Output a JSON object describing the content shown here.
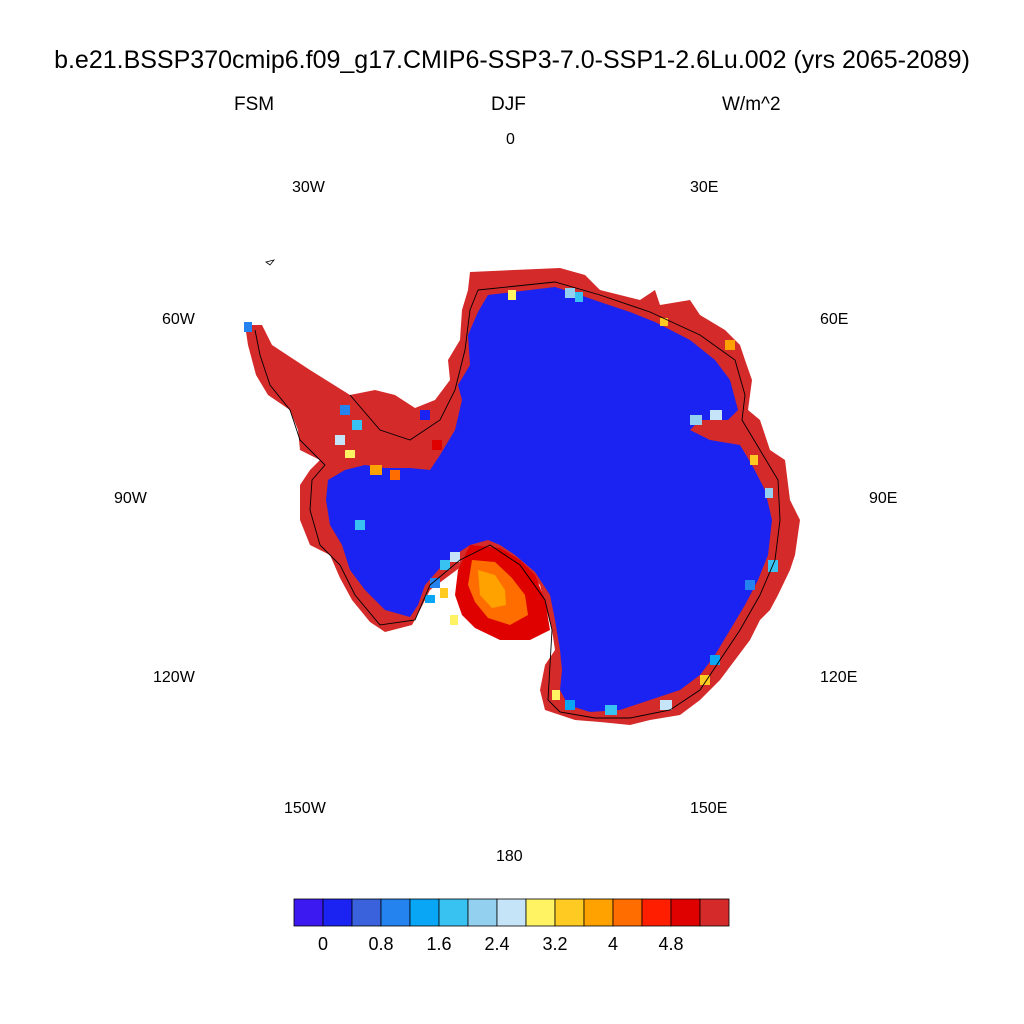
{
  "title": "b.e21.BSSP370cmip6.f09_g17.CMIP6-SSP3-7.0-SSP1-2.6Lu.002 (yrs 2065-2089)",
  "subtitle_left": "FSM",
  "subtitle_center": "DJF",
  "subtitle_right": "W/m^2",
  "longitude_labels": {
    "lon_0": "0",
    "lon_30e": "30E",
    "lon_60e": "60E",
    "lon_90e": "90E",
    "lon_120e": "120E",
    "lon_150e": "150E",
    "lon_180": "180",
    "lon_150w": "150W",
    "lon_120w": "120W",
    "lon_90w": "90W",
    "lon_60w": "60W",
    "lon_30w": "30W"
  },
  "colorbar": {
    "colors": [
      "#3b19f0",
      "#1a23f2",
      "#3a62dc",
      "#2583f0",
      "#0aa6f6",
      "#38c2f2",
      "#93cfee",
      "#c6e4f7",
      "#fff263",
      "#ffca21",
      "#ffa200",
      "#ff6d00",
      "#ff1e00",
      "#df0000",
      "#d42a2a"
    ],
    "labels": [
      "0",
      "0.8",
      "1.6",
      "2.4",
      "3.2",
      "4",
      "4.8"
    ]
  },
  "map_colors": {
    "interior": "#1a23f2",
    "coast_band": "#d42a2a",
    "ice_shelf_hot": "#ff6d00",
    "ice_shelf_warm": "#ffa200",
    "ice_shelf_red": "#df0000"
  }
}
